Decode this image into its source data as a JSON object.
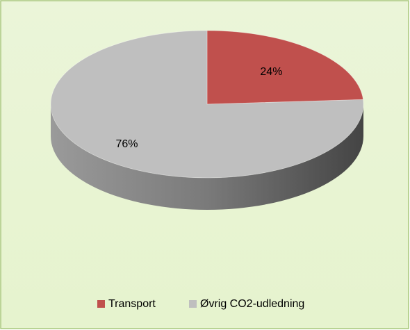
{
  "chart_data": {
    "type": "pie",
    "categories": [
      "Transport",
      "Øvrig CO2-udledning"
    ],
    "values": [
      24,
      76
    ],
    "value_labels": [
      "24%",
      "76%"
    ],
    "colors": [
      "#c0504d",
      "#bfbfbf"
    ],
    "legend": "bottom"
  }
}
